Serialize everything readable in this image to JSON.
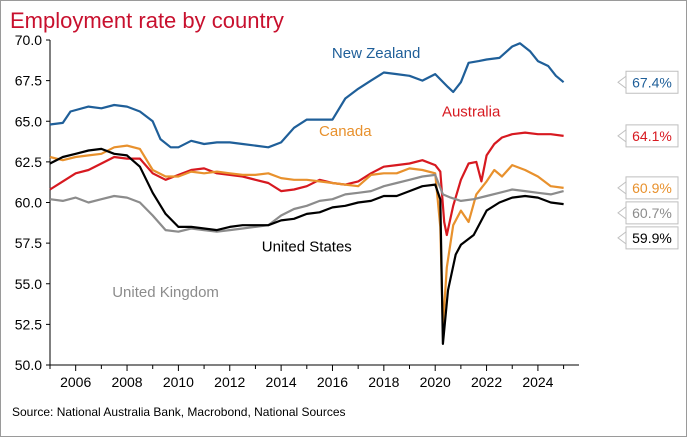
{
  "chart_data": {
    "type": "line",
    "title": "Employment rate by country",
    "source": "Source: National Australia Bank, Macrobond, National Sources",
    "xlim": [
      2005.0,
      2025.6
    ],
    "ylim": [
      50.0,
      70.0
    ],
    "x_ticks": [
      2006,
      2008,
      2010,
      2012,
      2014,
      2016,
      2018,
      2020,
      2022,
      2024
    ],
    "y_ticks": [
      50.0,
      52.5,
      55.0,
      57.5,
      60.0,
      62.5,
      65.0,
      67.5,
      70.0
    ],
    "y_tick_labels": [
      "50.0",
      "52.5",
      "55.0",
      "57.5",
      "60.0",
      "62.5",
      "65.0",
      "67.5",
      "70.0"
    ],
    "x_tick_labels": [
      "2006",
      "2008",
      "2010",
      "2012",
      "2014",
      "2016",
      "2018",
      "2020",
      "2022",
      "2024"
    ],
    "grid": false,
    "legend": "inline labels",
    "series": [
      {
        "name": "New Zealand",
        "color": "#1f5f99",
        "end_label": "67.4%",
        "points": [
          [
            2005.0,
            64.8
          ],
          [
            2005.5,
            64.9
          ],
          [
            2005.8,
            65.6
          ],
          [
            2006.5,
            65.9
          ],
          [
            2007.0,
            65.8
          ],
          [
            2007.5,
            66.0
          ],
          [
            2008.0,
            65.9
          ],
          [
            2008.5,
            65.6
          ],
          [
            2009.0,
            65.0
          ],
          [
            2009.3,
            63.9
          ],
          [
            2009.7,
            63.4
          ],
          [
            2010.0,
            63.4
          ],
          [
            2010.5,
            63.8
          ],
          [
            2011.0,
            63.6
          ],
          [
            2011.5,
            63.7
          ],
          [
            2012.0,
            63.7
          ],
          [
            2012.5,
            63.6
          ],
          [
            2013.0,
            63.5
          ],
          [
            2013.5,
            63.4
          ],
          [
            2014.0,
            63.7
          ],
          [
            2014.5,
            64.6
          ],
          [
            2015.0,
            65.1
          ],
          [
            2015.5,
            65.1
          ],
          [
            2016.0,
            65.1
          ],
          [
            2016.5,
            66.4
          ],
          [
            2017.0,
            67.0
          ],
          [
            2017.5,
            67.5
          ],
          [
            2018.0,
            68.0
          ],
          [
            2018.5,
            67.9
          ],
          [
            2019.0,
            67.8
          ],
          [
            2019.5,
            67.5
          ],
          [
            2020.0,
            67.9
          ],
          [
            2020.5,
            67.1
          ],
          [
            2020.7,
            66.8
          ],
          [
            2021.0,
            67.4
          ],
          [
            2021.3,
            68.6
          ],
          [
            2021.7,
            68.7
          ],
          [
            2022.0,
            68.8
          ],
          [
            2022.5,
            68.9
          ],
          [
            2023.0,
            69.6
          ],
          [
            2023.3,
            69.8
          ],
          [
            2023.7,
            69.3
          ],
          [
            2024.0,
            68.7
          ],
          [
            2024.4,
            68.4
          ],
          [
            2024.7,
            67.8
          ],
          [
            2025.0,
            67.4
          ]
        ]
      },
      {
        "name": "Australia",
        "color": "#d71920",
        "end_label": "64.1%",
        "points": [
          [
            2005.0,
            60.8
          ],
          [
            2005.5,
            61.3
          ],
          [
            2006.0,
            61.8
          ],
          [
            2006.5,
            62.0
          ],
          [
            2007.0,
            62.4
          ],
          [
            2007.5,
            62.8
          ],
          [
            2008.0,
            62.7
          ],
          [
            2008.5,
            62.7
          ],
          [
            2009.0,
            61.8
          ],
          [
            2009.5,
            61.4
          ],
          [
            2010.0,
            61.7
          ],
          [
            2010.5,
            62.0
          ],
          [
            2011.0,
            62.1
          ],
          [
            2011.5,
            61.8
          ],
          [
            2012.0,
            61.7
          ],
          [
            2012.5,
            61.6
          ],
          [
            2013.0,
            61.4
          ],
          [
            2013.5,
            61.2
          ],
          [
            2014.0,
            60.7
          ],
          [
            2014.5,
            60.8
          ],
          [
            2015.0,
            61.0
          ],
          [
            2015.5,
            61.4
          ],
          [
            2016.0,
            61.2
          ],
          [
            2016.5,
            61.1
          ],
          [
            2017.0,
            61.3
          ],
          [
            2017.5,
            61.8
          ],
          [
            2018.0,
            62.2
          ],
          [
            2018.5,
            62.3
          ],
          [
            2019.0,
            62.4
          ],
          [
            2019.5,
            62.6
          ],
          [
            2020.0,
            62.3
          ],
          [
            2020.2,
            61.9
          ],
          [
            2020.35,
            58.8
          ],
          [
            2020.45,
            58.0
          ],
          [
            2020.7,
            59.8
          ],
          [
            2021.0,
            61.4
          ],
          [
            2021.3,
            62.4
          ],
          [
            2021.6,
            62.5
          ],
          [
            2021.8,
            61.3
          ],
          [
            2022.0,
            62.9
          ],
          [
            2022.3,
            63.6
          ],
          [
            2022.6,
            64.0
          ],
          [
            2023.0,
            64.2
          ],
          [
            2023.5,
            64.3
          ],
          [
            2024.0,
            64.2
          ],
          [
            2024.5,
            64.2
          ],
          [
            2025.0,
            64.1
          ]
        ]
      },
      {
        "name": "Canada",
        "color": "#e8912d",
        "end_label": "60.9%",
        "points": [
          [
            2005.0,
            62.8
          ],
          [
            2005.5,
            62.6
          ],
          [
            2006.0,
            62.8
          ],
          [
            2006.5,
            62.9
          ],
          [
            2007.0,
            63.0
          ],
          [
            2007.5,
            63.4
          ],
          [
            2008.0,
            63.5
          ],
          [
            2008.5,
            63.3
          ],
          [
            2009.0,
            62.0
          ],
          [
            2009.5,
            61.6
          ],
          [
            2010.0,
            61.6
          ],
          [
            2010.5,
            61.9
          ],
          [
            2011.0,
            61.8
          ],
          [
            2011.5,
            61.9
          ],
          [
            2012.0,
            61.8
          ],
          [
            2012.5,
            61.7
          ],
          [
            2013.0,
            61.7
          ],
          [
            2013.5,
            61.8
          ],
          [
            2014.0,
            61.5
          ],
          [
            2014.5,
            61.4
          ],
          [
            2015.0,
            61.4
          ],
          [
            2015.5,
            61.3
          ],
          [
            2016.0,
            61.2
          ],
          [
            2016.5,
            61.1
          ],
          [
            2017.0,
            61.0
          ],
          [
            2017.5,
            61.7
          ],
          [
            2018.0,
            61.8
          ],
          [
            2018.5,
            61.8
          ],
          [
            2019.0,
            62.1
          ],
          [
            2019.5,
            62.0
          ],
          [
            2020.0,
            61.8
          ],
          [
            2020.2,
            58.5
          ],
          [
            2020.3,
            52.3
          ],
          [
            2020.45,
            56.0
          ],
          [
            2020.7,
            58.6
          ],
          [
            2021.0,
            59.5
          ],
          [
            2021.3,
            58.8
          ],
          [
            2021.6,
            60.5
          ],
          [
            2022.0,
            61.3
          ],
          [
            2022.3,
            62.0
          ],
          [
            2022.6,
            61.6
          ],
          [
            2023.0,
            62.3
          ],
          [
            2023.5,
            62.0
          ],
          [
            2024.0,
            61.6
          ],
          [
            2024.5,
            61.0
          ],
          [
            2025.0,
            60.9
          ]
        ]
      },
      {
        "name": "United Kingdom",
        "color": "#8c8c8c",
        "end_label": "60.7%",
        "points": [
          [
            2005.0,
            60.2
          ],
          [
            2005.5,
            60.1
          ],
          [
            2006.0,
            60.3
          ],
          [
            2006.5,
            60.0
          ],
          [
            2007.0,
            60.2
          ],
          [
            2007.5,
            60.4
          ],
          [
            2008.0,
            60.3
          ],
          [
            2008.5,
            60.0
          ],
          [
            2009.0,
            59.2
          ],
          [
            2009.5,
            58.3
          ],
          [
            2010.0,
            58.2
          ],
          [
            2010.5,
            58.4
          ],
          [
            2011.0,
            58.3
          ],
          [
            2011.5,
            58.2
          ],
          [
            2012.0,
            58.3
          ],
          [
            2012.5,
            58.4
          ],
          [
            2013.0,
            58.5
          ],
          [
            2013.5,
            58.6
          ],
          [
            2014.0,
            59.2
          ],
          [
            2014.5,
            59.6
          ],
          [
            2015.0,
            59.8
          ],
          [
            2015.5,
            60.1
          ],
          [
            2016.0,
            60.2
          ],
          [
            2016.5,
            60.5
          ],
          [
            2017.0,
            60.6
          ],
          [
            2017.5,
            60.7
          ],
          [
            2018.0,
            61.0
          ],
          [
            2018.5,
            61.2
          ],
          [
            2019.0,
            61.4
          ],
          [
            2019.5,
            61.6
          ],
          [
            2020.0,
            61.7
          ],
          [
            2020.3,
            60.5
          ],
          [
            2020.6,
            60.3
          ],
          [
            2021.0,
            60.1
          ],
          [
            2021.5,
            60.2
          ],
          [
            2022.0,
            60.4
          ],
          [
            2022.5,
            60.6
          ],
          [
            2023.0,
            60.8
          ],
          [
            2023.5,
            60.7
          ],
          [
            2024.0,
            60.6
          ],
          [
            2024.5,
            60.5
          ],
          [
            2025.0,
            60.7
          ]
        ]
      },
      {
        "name": "United States",
        "color": "#000000",
        "end_label": "59.9%",
        "points": [
          [
            2005.0,
            62.4
          ],
          [
            2005.5,
            62.8
          ],
          [
            2006.0,
            63.0
          ],
          [
            2006.5,
            63.2
          ],
          [
            2007.0,
            63.3
          ],
          [
            2007.5,
            63.0
          ],
          [
            2008.0,
            62.9
          ],
          [
            2008.5,
            62.2
          ],
          [
            2009.0,
            60.6
          ],
          [
            2009.5,
            59.3
          ],
          [
            2010.0,
            58.5
          ],
          [
            2010.5,
            58.5
          ],
          [
            2011.0,
            58.4
          ],
          [
            2011.5,
            58.3
          ],
          [
            2012.0,
            58.5
          ],
          [
            2012.5,
            58.6
          ],
          [
            2013.0,
            58.6
          ],
          [
            2013.5,
            58.6
          ],
          [
            2014.0,
            58.9
          ],
          [
            2014.5,
            59.0
          ],
          [
            2015.0,
            59.3
          ],
          [
            2015.5,
            59.4
          ],
          [
            2016.0,
            59.7
          ],
          [
            2016.5,
            59.8
          ],
          [
            2017.0,
            60.0
          ],
          [
            2017.5,
            60.1
          ],
          [
            2018.0,
            60.4
          ],
          [
            2018.5,
            60.4
          ],
          [
            2019.0,
            60.7
          ],
          [
            2019.5,
            61.0
          ],
          [
            2020.0,
            61.1
          ],
          [
            2020.2,
            60.2
          ],
          [
            2020.3,
            51.3
          ],
          [
            2020.5,
            54.6
          ],
          [
            2020.8,
            56.8
          ],
          [
            2021.0,
            57.4
          ],
          [
            2021.5,
            58.0
          ],
          [
            2022.0,
            59.5
          ],
          [
            2022.5,
            60.0
          ],
          [
            2023.0,
            60.3
          ],
          [
            2023.5,
            60.4
          ],
          [
            2024.0,
            60.3
          ],
          [
            2024.5,
            60.0
          ],
          [
            2025.0,
            59.9
          ]
        ]
      }
    ],
    "series_labels": [
      {
        "text": "New Zealand",
        "color": "#1f5f99",
        "at": [
          2017.7,
          68.9
        ]
      },
      {
        "text": "Australia",
        "color": "#d71920",
        "at": [
          2021.4,
          65.3
        ]
      },
      {
        "text": "Canada",
        "color": "#e8912d",
        "at": [
          2016.5,
          64.1
        ]
      },
      {
        "text": "United States",
        "color": "#000000",
        "at": [
          2015.0,
          57.0
        ]
      },
      {
        "text": "United Kingdom",
        "color": "#8c8c8c",
        "at": [
          2009.5,
          54.2
        ]
      }
    ]
  }
}
